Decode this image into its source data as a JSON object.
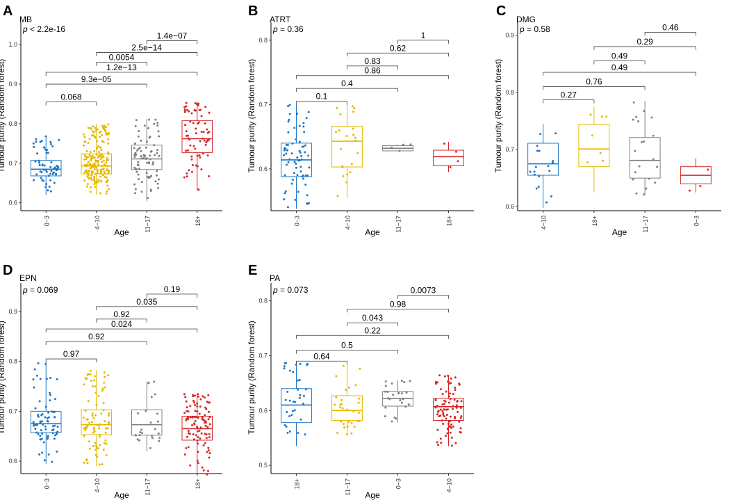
{
  "chart_data": [
    {
      "type": "boxplot",
      "letter": "A",
      "title": "MB",
      "ylabel": "Tumour purity (Random forest)",
      "xlabel": "Age",
      "ylim": [
        0.58,
        1.06
      ],
      "yticks": [
        "0.6",
        "0.7",
        "0.8",
        "0.9",
        "1.0"
      ],
      "global_p_prefix": "p",
      "global_p": "< 2.2e-16",
      "categories": [
        "0−3",
        "4−10",
        "11−17",
        "18+"
      ],
      "colors": [
        "#1f77c4",
        "#e6b800",
        "#808080",
        "#d62728"
      ],
      "boxes": [
        {
          "whisker_low": 0.62,
          "q1": 0.668,
          "median": 0.685,
          "q3": 0.707,
          "whisker_high": 0.768,
          "n": 60
        },
        {
          "whisker_low": 0.62,
          "q1": 0.673,
          "median": 0.693,
          "q3": 0.724,
          "whisker_high": 0.8,
          "n": 180
        },
        {
          "whisker_low": 0.605,
          "q1": 0.684,
          "median": 0.711,
          "q3": 0.746,
          "whisker_high": 0.812,
          "n": 80
        },
        {
          "whisker_low": 0.63,
          "q1": 0.727,
          "median": 0.762,
          "q3": 0.808,
          "whisker_high": 0.855,
          "n": 70
        }
      ],
      "comparisons": [
        {
          "from": 0,
          "to": 1,
          "y": 0.855,
          "label": "0.068"
        },
        {
          "from": 0,
          "to": 2,
          "y": 0.9,
          "label": "9.3e−05"
        },
        {
          "from": 0,
          "to": 3,
          "y": 0.93,
          "label": "1.2e−13"
        },
        {
          "from": 1,
          "to": 2,
          "y": 0.955,
          "label": "0.0054"
        },
        {
          "from": 1,
          "to": 3,
          "y": 0.98,
          "label": "2.5e−14"
        },
        {
          "from": 2,
          "to": 3,
          "y": 1.01,
          "label": "1.4e−07"
        }
      ]
    },
    {
      "type": "boxplot",
      "letter": "B",
      "title": "ATRT",
      "ylabel": "Tumour purity (Random forest)",
      "xlabel": "Age",
      "ylim": [
        0.535,
        0.83
      ],
      "yticks": [
        "0.6",
        "0.7",
        "0.8"
      ],
      "global_p_prefix": "p",
      "global_p": "= 0.36",
      "categories": [
        "0−3",
        "4−10",
        "11−17",
        "18+"
      ],
      "colors": [
        "#1f77c4",
        "#e6b800",
        "#808080",
        "#d62728"
      ],
      "boxes": [
        {
          "whisker_low": 0.538,
          "q1": 0.588,
          "median": 0.614,
          "q3": 0.64,
          "whisker_high": 0.7,
          "n": 70
        },
        {
          "whisker_low": 0.555,
          "q1": 0.603,
          "median": 0.643,
          "q3": 0.666,
          "whisker_high": 0.7,
          "n": 22
        },
        {
          "whisker_low": 0.628,
          "q1": 0.628,
          "median": 0.632,
          "q3": 0.636,
          "whisker_high": 0.638,
          "n": 4
        },
        {
          "whisker_low": 0.595,
          "q1": 0.605,
          "median": 0.619,
          "q3": 0.629,
          "whisker_high": 0.642,
          "n": 4
        }
      ],
      "comparisons": [
        {
          "from": 0,
          "to": 1,
          "y": 0.705,
          "label": "0.1"
        },
        {
          "from": 0,
          "to": 2,
          "y": 0.725,
          "label": "0.4"
        },
        {
          "from": 0,
          "to": 3,
          "y": 0.745,
          "label": "0.86"
        },
        {
          "from": 1,
          "to": 2,
          "y": 0.76,
          "label": "0.83"
        },
        {
          "from": 1,
          "to": 3,
          "y": 0.78,
          "label": "0.62"
        },
        {
          "from": 2,
          "to": 3,
          "y": 0.8,
          "label": "1"
        }
      ]
    },
    {
      "type": "boxplot",
      "letter": "C",
      "title": "DMG",
      "ylabel": "Tumour purity (Random forest)",
      "xlabel": "Age",
      "ylim": [
        0.593,
        0.925
      ],
      "yticks": [
        "0.6",
        "0.7",
        "0.8",
        "0.9"
      ],
      "global_p_prefix": "p",
      "global_p": "= 0.58",
      "categories": [
        "4−10",
        "18+",
        "11−17",
        "0−3"
      ],
      "colors": [
        "#1f77c4",
        "#e6b800",
        "#808080",
        "#d62728"
      ],
      "boxes": [
        {
          "whisker_low": 0.598,
          "q1": 0.655,
          "median": 0.675,
          "q3": 0.711,
          "whisker_high": 0.745,
          "n": 18
        },
        {
          "whisker_low": 0.625,
          "q1": 0.67,
          "median": 0.701,
          "q3": 0.744,
          "whisker_high": 0.775,
          "n": 7
        },
        {
          "whisker_low": 0.62,
          "q1": 0.65,
          "median": 0.681,
          "q3": 0.721,
          "whisker_high": 0.785,
          "n": 20
        },
        {
          "whisker_low": 0.625,
          "q1": 0.64,
          "median": 0.655,
          "q3": 0.67,
          "whisker_high": 0.685,
          "n": 3
        }
      ],
      "comparisons": [
        {
          "from": 0,
          "to": 1,
          "y": 0.787,
          "label": "0.27"
        },
        {
          "from": 0,
          "to": 2,
          "y": 0.81,
          "label": "0.76"
        },
        {
          "from": 0,
          "to": 3,
          "y": 0.835,
          "label": "0.49"
        },
        {
          "from": 1,
          "to": 2,
          "y": 0.855,
          "label": "0.49"
        },
        {
          "from": 1,
          "to": 3,
          "y": 0.88,
          "label": "0.29"
        },
        {
          "from": 2,
          "to": 3,
          "y": 0.905,
          "label": "0.46"
        }
      ]
    },
    {
      "type": "boxplot",
      "letter": "D",
      "title": "EPN",
      "ylabel": "Tumour purity (Random forest)",
      "xlabel": "Age",
      "ylim": [
        0.575,
        0.96
      ],
      "yticks": [
        "0.6",
        "0.7",
        "0.8",
        "0.9"
      ],
      "global_p_prefix": "p",
      "global_p": "= 0.069",
      "categories": [
        "0−3",
        "4−10",
        "11−17",
        "18+"
      ],
      "colors": [
        "#1f77c4",
        "#e6b800",
        "#808080",
        "#d62728"
      ],
      "boxes": [
        {
          "whisker_low": 0.595,
          "q1": 0.657,
          "median": 0.675,
          "q3": 0.7,
          "whisker_high": 0.8,
          "n": 75
        },
        {
          "whisker_low": 0.59,
          "q1": 0.653,
          "median": 0.673,
          "q3": 0.703,
          "whisker_high": 0.782,
          "n": 85
        },
        {
          "whisker_low": 0.62,
          "q1": 0.652,
          "median": 0.673,
          "q3": 0.703,
          "whisker_high": 0.76,
          "n": 25
        },
        {
          "whisker_low": 0.572,
          "q1": 0.642,
          "median": 0.665,
          "q3": 0.69,
          "whisker_high": 0.735,
          "n": 100
        }
      ],
      "comparisons": [
        {
          "from": 0,
          "to": 1,
          "y": 0.805,
          "label": "0.97"
        },
        {
          "from": 0,
          "to": 2,
          "y": 0.84,
          "label": "0.92"
        },
        {
          "from": 0,
          "to": 3,
          "y": 0.865,
          "label": "0.024"
        },
        {
          "from": 1,
          "to": 2,
          "y": 0.885,
          "label": "0.92"
        },
        {
          "from": 1,
          "to": 3,
          "y": 0.91,
          "label": "0.035"
        },
        {
          "from": 2,
          "to": 3,
          "y": 0.935,
          "label": "0.19"
        }
      ]
    },
    {
      "type": "boxplot",
      "letter": "E",
      "title": "PA",
      "ylabel": "Tumour purity (Random forest)",
      "xlabel": "Age",
      "ylim": [
        0.485,
        0.835
      ],
      "yticks": [
        "0.5",
        "0.6",
        "0.7",
        "0.8"
      ],
      "global_p_prefix": "p",
      "global_p": "= 0.073",
      "categories": [
        "18+",
        "11−17",
        "0−3",
        "4−10"
      ],
      "colors": [
        "#1f77c4",
        "#e6b800",
        "#808080",
        "#d62728"
      ],
      "boxes": [
        {
          "whisker_low": 0.535,
          "q1": 0.578,
          "median": 0.61,
          "q3": 0.64,
          "whisker_high": 0.69,
          "n": 35
        },
        {
          "whisker_low": 0.555,
          "q1": 0.582,
          "median": 0.6,
          "q3": 0.627,
          "whisker_high": 0.685,
          "n": 30
        },
        {
          "whisker_low": 0.578,
          "q1": 0.608,
          "median": 0.622,
          "q3": 0.635,
          "whisker_high": 0.655,
          "n": 25
        },
        {
          "whisker_low": 0.535,
          "q1": 0.582,
          "median": 0.607,
          "q3": 0.622,
          "whisker_high": 0.665,
          "n": 90
        }
      ],
      "comparisons": [
        {
          "from": 0,
          "to": 1,
          "y": 0.69,
          "label": "0.64"
        },
        {
          "from": 0,
          "to": 2,
          "y": 0.71,
          "label": "0.5"
        },
        {
          "from": 0,
          "to": 3,
          "y": 0.737,
          "label": "0.22"
        },
        {
          "from": 1,
          "to": 2,
          "y": 0.76,
          "label": "0.043"
        },
        {
          "from": 1,
          "to": 3,
          "y": 0.785,
          "label": "0.98"
        },
        {
          "from": 2,
          "to": 3,
          "y": 0.81,
          "label": "0.0073"
        }
      ]
    }
  ]
}
